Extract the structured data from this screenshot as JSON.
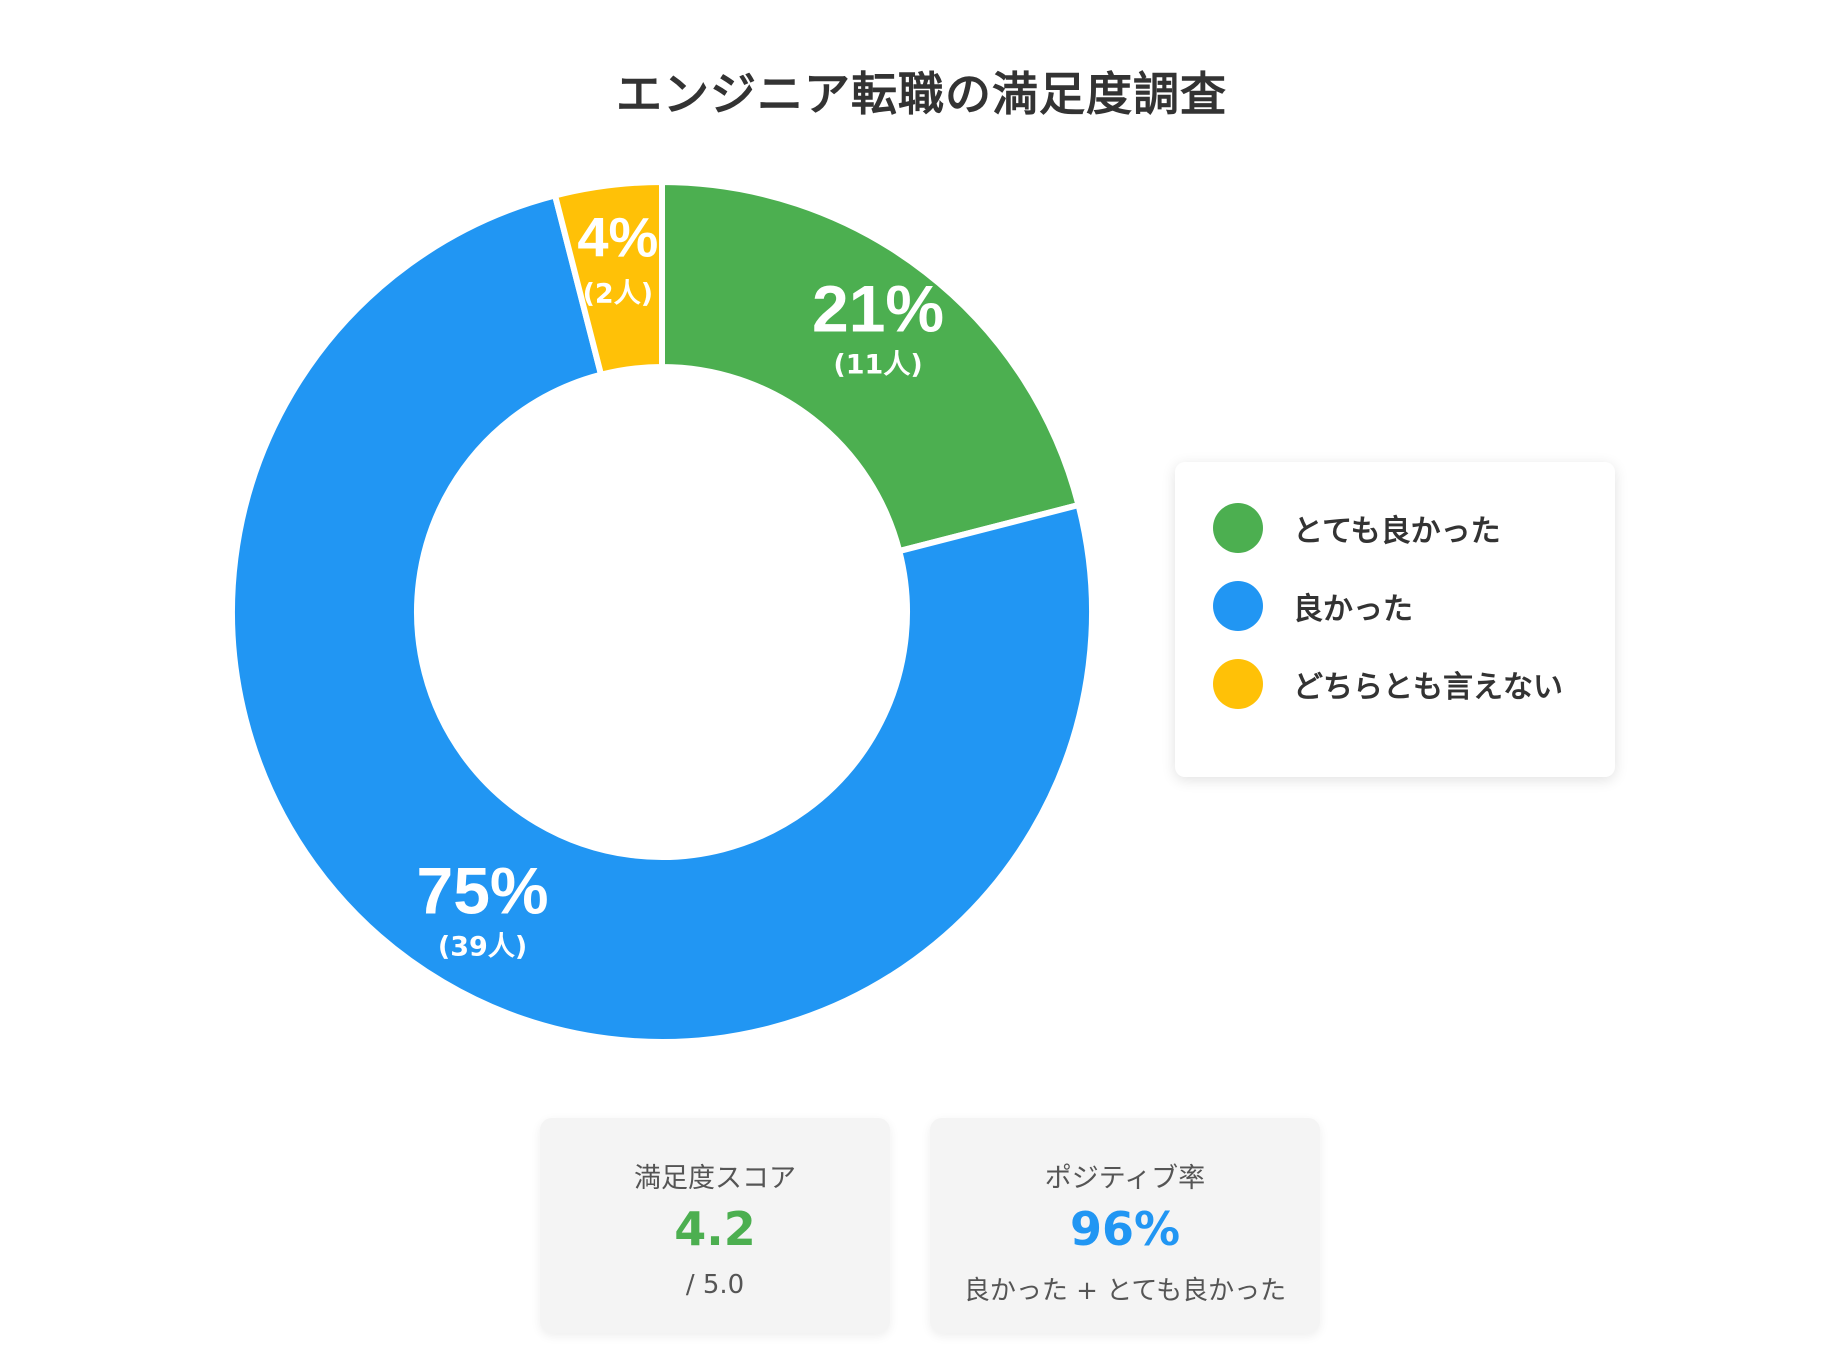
{
  "title": "エンジニア転職の満足度調査",
  "chart_data": {
    "type": "pie",
    "variant": "donut",
    "title": "エンジニア転職の満足度調査",
    "slices": [
      {
        "label": "とても良かった",
        "percent": 21,
        "percent_label": "21%",
        "count_label": "(11人)",
        "color": "#4CAF50"
      },
      {
        "label": "良かった",
        "percent": 75,
        "percent_label": "75%",
        "count_label": "(39人)",
        "color": "#2196F3"
      },
      {
        "label": "どちらとも言えない",
        "percent": 4,
        "percent_label": "4%",
        "count_label": "(2人)",
        "color": "#FFC107"
      }
    ],
    "legend_position": "right"
  },
  "legend": {
    "items": [
      {
        "label": "とても良かった",
        "color": "#4CAF50"
      },
      {
        "label": "良かった",
        "color": "#2196F3"
      },
      {
        "label": "どちらとも言えない",
        "color": "#FFC107"
      }
    ]
  },
  "cards": {
    "score": {
      "label": "満足度スコア",
      "value": "4.2",
      "sub": "/ 5.0",
      "color": "#4CAF50"
    },
    "positive": {
      "label": "ポジティブ率",
      "value": "96%",
      "sub": "良かった + とても良かった",
      "color": "#2196F3"
    }
  }
}
